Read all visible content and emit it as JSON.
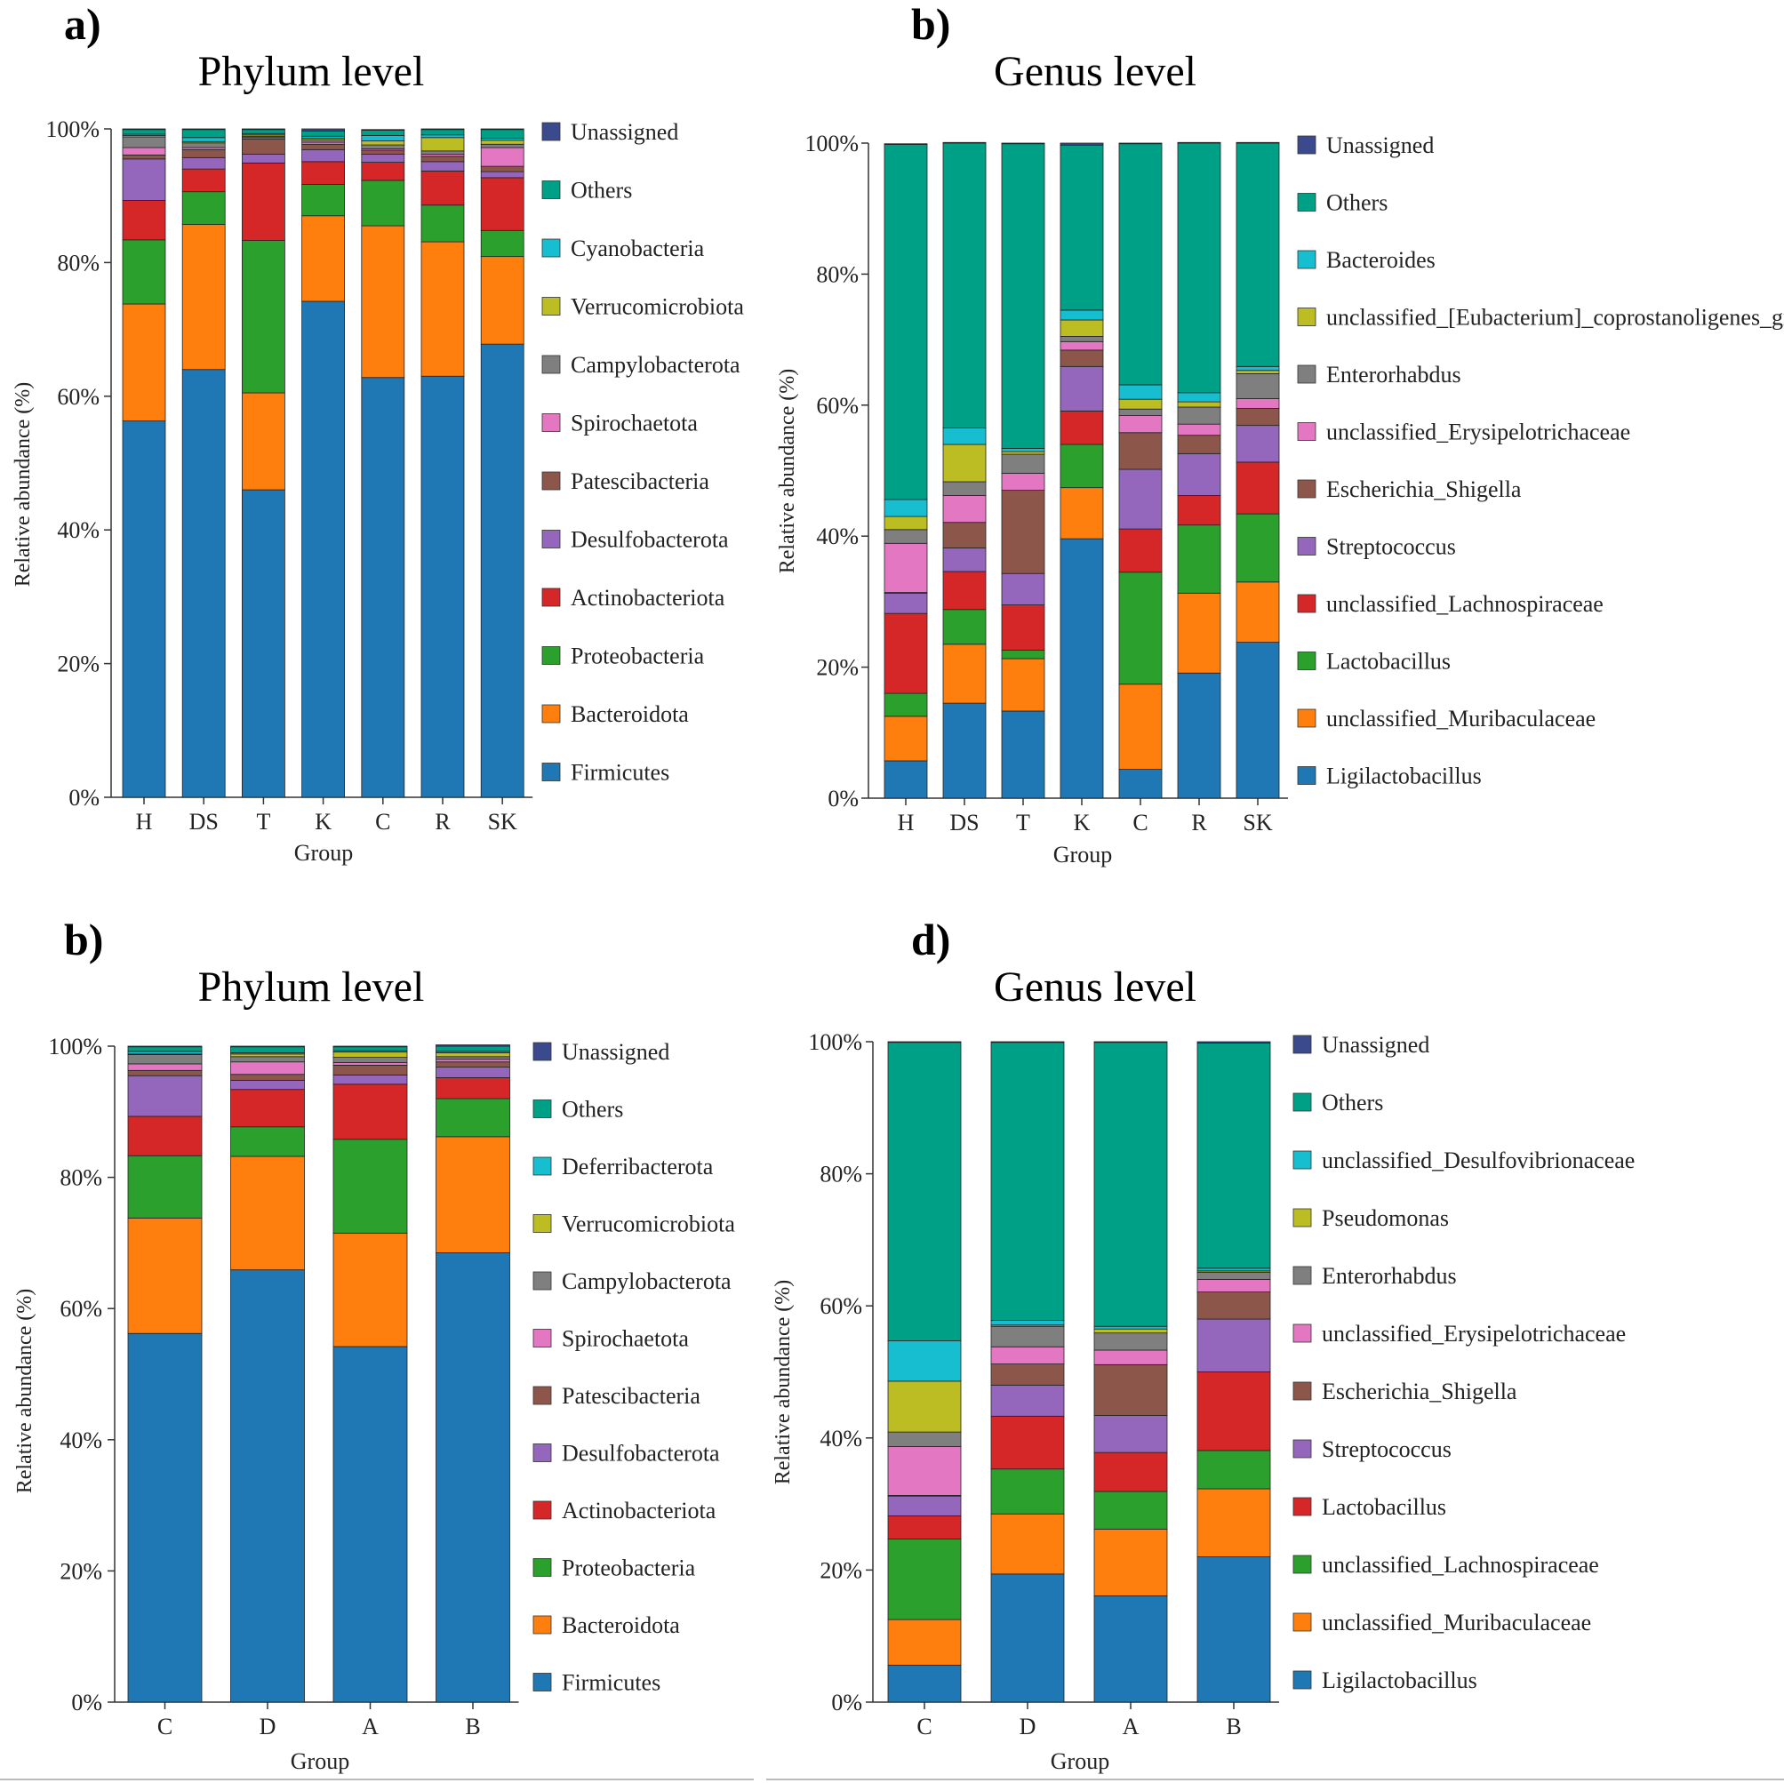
{
  "colors": {
    "Unassigned": "#3b4a8c",
    "Others": "#00a087",
    "c_cyan": "#17becf",
    "c_olive": "#bcbd22",
    "c_gray": "#7f7f7f",
    "c_pink": "#e377c2",
    "c_brown": "#8c564b",
    "c_purple": "#9467bd",
    "c_red": "#d62728",
    "c_green": "#2ca02c",
    "c_orange": "#ff7f0e",
    "c_blue": "#1f77b4"
  },
  "chart_data": [
    {
      "panel": "a)",
      "type": "bar",
      "stacked": true,
      "title": "Phylum level",
      "xlabel": "Group",
      "ylabel": "Relative abundance (%)",
      "yticks": [
        "0%",
        "20%",
        "40%",
        "60%",
        "80%",
        "100%"
      ],
      "ylim": [
        0,
        100
      ],
      "categories": [
        "H",
        "DS",
        "T",
        "K",
        "C",
        "R",
        "SK"
      ],
      "legend": [
        "Unassigned",
        "Others",
        "Cyanobacteria",
        "Verrucomicrobiota",
        "Campylobacterota",
        "Spirochaetota",
        "Patescibacteria",
        "Desulfobacterota",
        "Actinobacteriota",
        "Proteobacteria",
        "Bacteroidota",
        "Firmicutes"
      ],
      "legend_colors": [
        "Unassigned",
        "Others",
        "c_cyan",
        "c_olive",
        "c_gray",
        "c_pink",
        "c_brown",
        "c_purple",
        "c_red",
        "c_green",
        "c_orange",
        "c_blue"
      ],
      "series": [
        {
          "name": "Firmicutes",
          "values": [
            56.3,
            64.0,
            46.0,
            74.2,
            62.8,
            63.0,
            67.8
          ]
        },
        {
          "name": "Bacteroidota",
          "values": [
            17.5,
            21.7,
            14.5,
            12.8,
            22.7,
            20.1,
            13.1
          ]
        },
        {
          "name": "Proteobacteria",
          "values": [
            9.6,
            4.9,
            22.8,
            4.7,
            6.8,
            5.5,
            3.9
          ]
        },
        {
          "name": "Actinobacteriota",
          "values": [
            5.9,
            3.4,
            11.6,
            3.4,
            2.7,
            5.1,
            7.9
          ]
        },
        {
          "name": "Desulfobacterota",
          "values": [
            6.2,
            1.7,
            1.3,
            1.8,
            1.2,
            1.4,
            0.9
          ]
        },
        {
          "name": "Patescibacteria",
          "values": [
            0.6,
            1.2,
            2.3,
            0.8,
            0.6,
            0.8,
            0.8
          ]
        },
        {
          "name": "Spirochaetota",
          "values": [
            1.1,
            0.3,
            0.2,
            0.3,
            0.2,
            0.3,
            2.8
          ]
        },
        {
          "name": "Campylobacterota",
          "values": [
            1.6,
            0.7,
            0.2,
            0.4,
            0.6,
            0.5,
            0.5
          ]
        },
        {
          "name": "Verrucomicrobiota",
          "values": [
            0.2,
            0.2,
            0.2,
            0.2,
            0.6,
            2.0,
            0.6
          ]
        },
        {
          "name": "Cyanobacteria",
          "values": [
            0.2,
            0.6,
            0.2,
            0.3,
            0.8,
            0.4,
            0.3
          ]
        },
        {
          "name": "Others",
          "values": [
            0.7,
            1.2,
            0.6,
            0.8,
            0.8,
            0.8,
            1.3
          ]
        },
        {
          "name": "Unassigned",
          "values": [
            0.1,
            0.1,
            0.1,
            0.3,
            0.1,
            0.1,
            0.1
          ]
        }
      ]
    },
    {
      "panel": "b)",
      "type": "bar",
      "stacked": true,
      "title": "Genus level",
      "xlabel": "Group",
      "ylabel": "Relative abundance (%)",
      "yticks": [
        "0%",
        "20%",
        "40%",
        "60%",
        "80%",
        "100%"
      ],
      "ylim": [
        0,
        100
      ],
      "categories": [
        "H",
        "DS",
        "T",
        "K",
        "C",
        "R",
        "SK"
      ],
      "legend": [
        "Unassigned",
        "Others",
        "Bacteroides",
        "unclassified_[Eubacterium]_coprostanoligenes_gr",
        "Enterorhabdus",
        "unclassified_Erysipelotrichaceae",
        "Escherichia_Shigella",
        "Streptococcus",
        "unclassified_Lachnospiraceae",
        "Lactobacillus",
        "unclassified_Muribaculaceae",
        "Ligilactobacillus"
      ],
      "legend_colors": [
        "Unassigned",
        "Others",
        "c_cyan",
        "c_olive",
        "c_gray",
        "c_pink",
        "c_brown",
        "c_purple",
        "c_red",
        "c_green",
        "c_orange",
        "c_blue"
      ],
      "series": [
        {
          "name": "Ligilactobacillus",
          "values": [
            5.7,
            14.5,
            13.3,
            39.6,
            4.4,
            19.1,
            23.8
          ]
        },
        {
          "name": "unclassified_Muribaculaceae",
          "values": [
            6.8,
            9.0,
            8.0,
            7.8,
            13.0,
            12.2,
            9.2
          ]
        },
        {
          "name": "Lactobacillus",
          "values": [
            3.5,
            5.3,
            1.3,
            6.6,
            17.1,
            10.4,
            10.4
          ]
        },
        {
          "name": "unclassified_Lachnospiraceae",
          "values": [
            12.2,
            5.8,
            6.9,
            5.1,
            6.6,
            4.5,
            7.9
          ]
        },
        {
          "name": "Streptococcus",
          "values": [
            3.1,
            3.6,
            4.8,
            6.8,
            9.1,
            6.4,
            5.6
          ]
        },
        {
          "name": "Escherichia_Shigella",
          "values": [
            0.1,
            3.9,
            12.7,
            2.5,
            5.6,
            2.8,
            2.6
          ]
        },
        {
          "name": "unclassified_Erysipelotrichaceae",
          "values": [
            7.5,
            4.1,
            2.6,
            1.3,
            2.6,
            1.7,
            1.5
          ]
        },
        {
          "name": "Enterorhabdus",
          "values": [
            2.1,
            2.1,
            2.9,
            0.8,
            1.0,
            2.6,
            3.8
          ]
        },
        {
          "name": "unclassified_[Eubacterium]_coprostanoligenes_gr",
          "values": [
            2.0,
            5.7,
            0.4,
            2.5,
            1.5,
            0.8,
            0.5
          ]
        },
        {
          "name": "Bacteroides",
          "values": [
            2.6,
            2.5,
            0.5,
            1.5,
            2.2,
            1.4,
            0.6
          ]
        },
        {
          "name": "Others",
          "values": [
            54.2,
            43.5,
            46.5,
            25.2,
            36.8,
            38.1,
            34.1
          ]
        },
        {
          "name": "Unassigned",
          "values": [
            0.1,
            0.1,
            0.1,
            0.3,
            0.1,
            0.1,
            0.1
          ]
        }
      ]
    },
    {
      "panel": "b)",
      "type": "bar",
      "stacked": true,
      "title": "Phylum level",
      "xlabel": "Group",
      "ylabel": "Relative abundance (%)",
      "yticks": [
        "0%",
        "20%",
        "40%",
        "60%",
        "80%",
        "100%"
      ],
      "ylim": [
        0,
        100
      ],
      "categories": [
        "C",
        "D",
        "A",
        "B"
      ],
      "legend": [
        "Unassigned",
        "Others",
        "Deferribacterota",
        "Verrucomicrobiota",
        "Campylobacterota",
        "Spirochaetota",
        "Patescibacteria",
        "Desulfobacterota",
        "Actinobacteriota",
        "Proteobacteria",
        "Bacteroidota",
        "Firmicutes"
      ],
      "legend_colors": [
        "Unassigned",
        "Others",
        "c_cyan",
        "c_olive",
        "c_gray",
        "c_pink",
        "c_brown",
        "c_purple",
        "c_red",
        "c_green",
        "c_orange",
        "c_blue"
      ],
      "series": [
        {
          "name": "Firmicutes",
          "values": [
            56.2,
            65.9,
            54.2,
            68.5
          ]
        },
        {
          "name": "Bacteroidota",
          "values": [
            17.6,
            17.3,
            17.3,
            17.7
          ]
        },
        {
          "name": "Proteobacteria",
          "values": [
            9.5,
            4.5,
            14.3,
            5.8
          ]
        },
        {
          "name": "Actinobacteriota",
          "values": [
            6.0,
            5.7,
            8.4,
            3.2
          ]
        },
        {
          "name": "Desulfobacterota",
          "values": [
            6.2,
            1.4,
            1.4,
            1.6
          ]
        },
        {
          "name": "Patescibacteria",
          "values": [
            0.8,
            0.9,
            1.5,
            0.8
          ]
        },
        {
          "name": "Spirochaetota",
          "values": [
            1.0,
            1.9,
            0.4,
            0.4
          ]
        },
        {
          "name": "Campylobacterota",
          "values": [
            1.4,
            0.8,
            0.8,
            0.4
          ]
        },
        {
          "name": "Verrucomicrobiota",
          "values": [
            0.1,
            0.4,
            0.8,
            0.6
          ]
        },
        {
          "name": "Deferribacterota",
          "values": [
            0.4,
            0.2,
            0.2,
            0.2
          ]
        },
        {
          "name": "Others",
          "values": [
            0.7,
            0.9,
            0.6,
            0.8
          ]
        },
        {
          "name": "Unassigned",
          "values": [
            0.1,
            0.1,
            0.1,
            0.2
          ]
        }
      ]
    },
    {
      "panel": "d)",
      "type": "bar",
      "stacked": true,
      "title": "Genus level",
      "xlabel": "Group",
      "ylabel": "Relative abundance (%)",
      "yticks": [
        "0%",
        "20%",
        "40%",
        "60%",
        "80%",
        "100%"
      ],
      "ylim": [
        0,
        100
      ],
      "categories": [
        "C",
        "D",
        "A",
        "B"
      ],
      "legend": [
        "Unassigned",
        "Others",
        "unclassified_Desulfovibrionaceae",
        "Pseudomonas",
        "Enterorhabdus",
        "unclassified_Erysipelotrichaceae",
        "Escherichia_Shigella",
        "Streptococcus",
        "Lactobacillus",
        "unclassified_Lachnospiraceae",
        "unclassified_Muribaculaceae",
        "Ligilactobacillus"
      ],
      "legend_colors": [
        "Unassigned",
        "Others",
        "c_cyan",
        "c_olive",
        "c_gray",
        "c_pink",
        "c_brown",
        "c_purple",
        "c_red",
        "c_green",
        "c_orange",
        "c_blue"
      ],
      "series": [
        {
          "name": "Ligilactobacillus",
          "values": [
            5.6,
            19.4,
            16.1,
            22.0
          ]
        },
        {
          "name": "unclassified_Muribaculaceae",
          "values": [
            6.9,
            9.1,
            10.1,
            10.3
          ]
        },
        {
          "name": "unclassified_Lachnospiraceae",
          "values": [
            12.2,
            6.8,
            5.7,
            5.8
          ]
        },
        {
          "name": "Lactobacillus",
          "values": [
            3.5,
            8.0,
            5.9,
            11.9
          ]
        },
        {
          "name": "Streptococcus",
          "values": [
            3.0,
            4.7,
            5.6,
            8.0
          ]
        },
        {
          "name": "Escherichia_Shigella",
          "values": [
            0.1,
            3.2,
            7.7,
            4.1
          ]
        },
        {
          "name": "unclassified_Erysipelotrichaceae",
          "values": [
            7.4,
            2.6,
            2.2,
            1.9
          ]
        },
        {
          "name": "Enterorhabdus",
          "values": [
            2.2,
            3.1,
            2.6,
            1.1
          ]
        },
        {
          "name": "Pseudomonas",
          "values": [
            7.7,
            0.2,
            0.6,
            0.2
          ]
        },
        {
          "name": "unclassified_Desulfovibrionaceae",
          "values": [
            6.1,
            0.7,
            0.4,
            0.4
          ]
        },
        {
          "name": "Others",
          "values": [
            45.2,
            42.1,
            43.0,
            34.1
          ]
        },
        {
          "name": "Unassigned",
          "values": [
            0.1,
            0.1,
            0.1,
            0.2
          ]
        }
      ]
    }
  ]
}
